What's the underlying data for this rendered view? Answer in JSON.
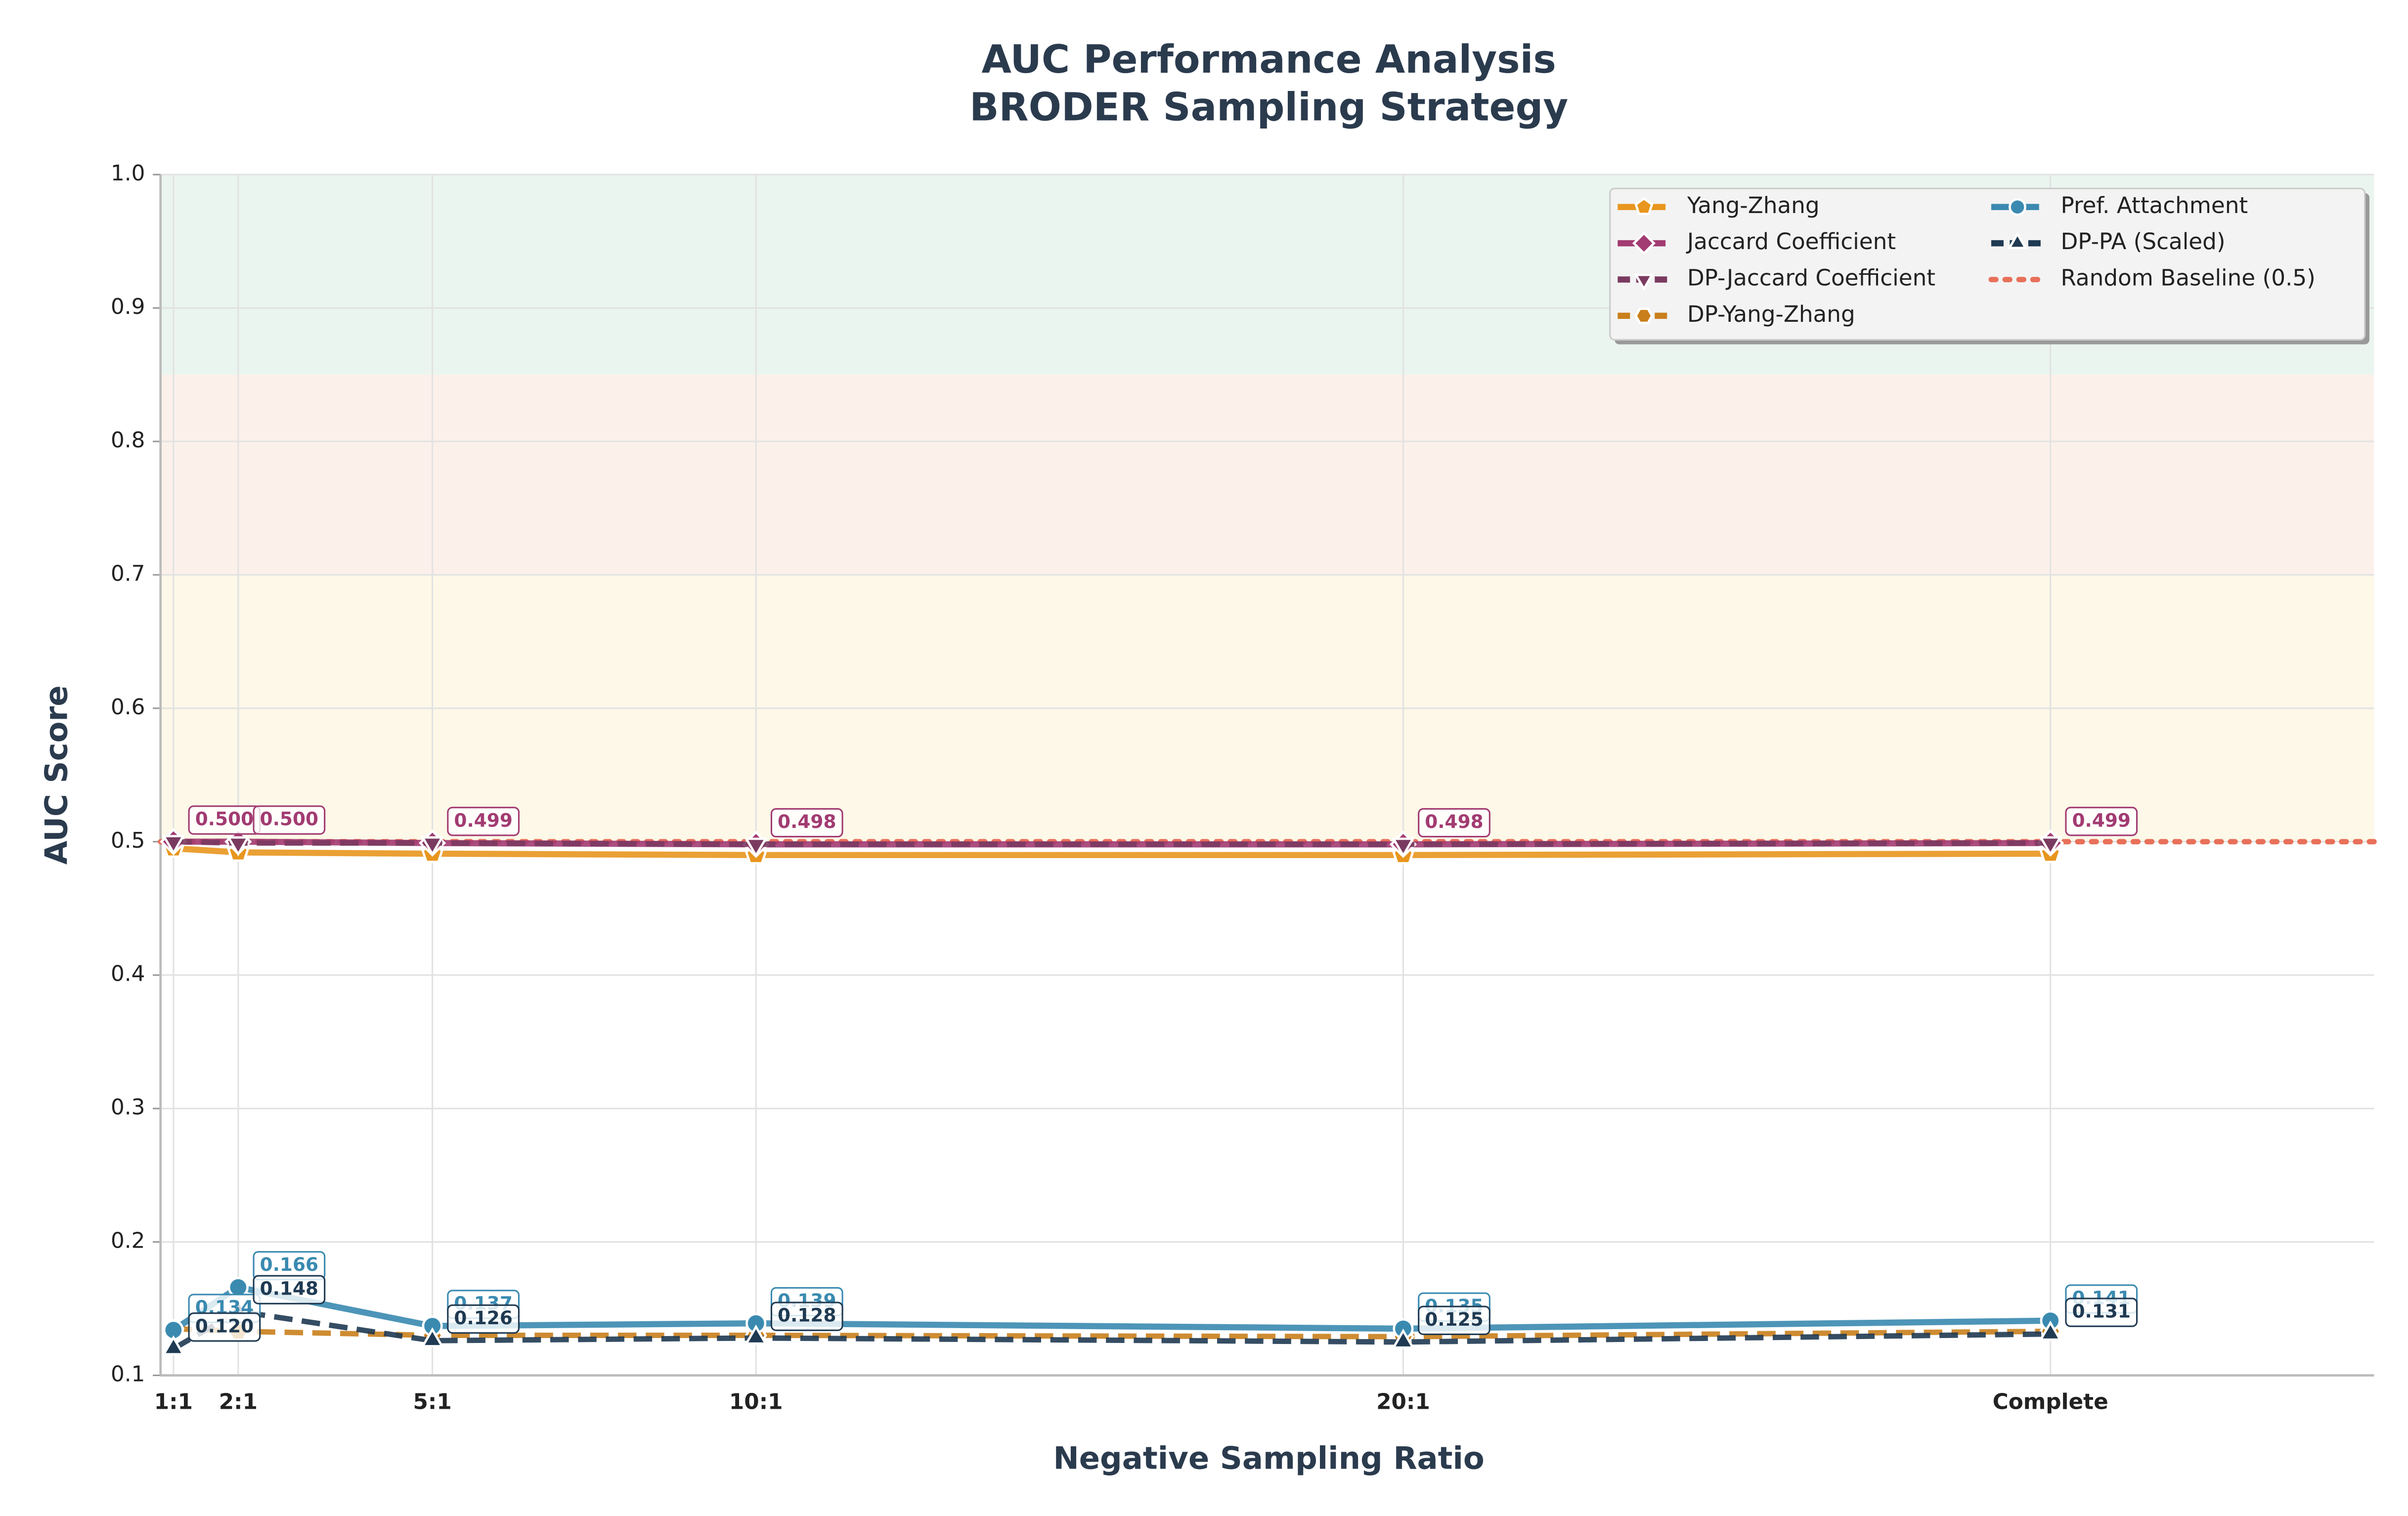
{
  "chart_data": {
    "type": "line",
    "title": "AUC Performance Analysis",
    "subtitle": "BRODER Sampling Strategy",
    "x_label": "Negative Sampling Ratio",
    "y_label": "AUC Score",
    "x": [
      1,
      2,
      5,
      10,
      20,
      30
    ],
    "xlim": [
      0.8,
      35
    ],
    "xticks": [
      {
        "value": 1,
        "label": "1:1"
      },
      {
        "value": 2,
        "label": "2:1"
      },
      {
        "value": 5,
        "label": "5:1"
      },
      {
        "value": 10,
        "label": "10:1"
      },
      {
        "value": 20,
        "label": "20:1"
      },
      {
        "value": 30,
        "label": "Complete"
      }
    ],
    "ylim": [
      0.1,
      1.0
    ],
    "yticks": [
      0.1,
      0.2,
      0.3,
      0.4,
      0.5,
      0.6,
      0.7,
      0.8,
      0.9,
      {
        "value": 1.0,
        "label": "1.0"
      }
    ],
    "grid": true,
    "legend": "upper right",
    "bands": [
      {
        "from": 0.85,
        "to": 1.0,
        "color": "#e3f1e8"
      },
      {
        "from": 0.7,
        "to": 0.85,
        "color": "#fbe9e3"
      },
      {
        "from": 0.5,
        "to": 0.7,
        "color": "#fcf5de"
      }
    ],
    "series": [
      {
        "name": "Yang-Zhang",
        "color": "#e8961e",
        "marker": "pentagon",
        "dash": false,
        "values": [
          0.495,
          0.492,
          0.491,
          0.49,
          0.49,
          0.491
        ]
      },
      {
        "name": "Jaccard Coefficient",
        "color": "#a23b72",
        "marker": "diamond",
        "dash": false,
        "values": [
          0.5,
          0.5,
          0.499,
          0.498,
          0.498,
          0.499
        ],
        "value_labels": [
          "0.500",
          "0.500",
          "0.499",
          "0.498",
          "0.498",
          "0.499"
        ]
      },
      {
        "name": "DP-Jaccard Coefficient",
        "color": "#7a3a60",
        "marker": "tri-down",
        "dash": true,
        "values": [
          0.5,
          0.499,
          0.499,
          0.498,
          0.498,
          0.499
        ]
      },
      {
        "name": "DP-Yang-Zhang",
        "color": "#c97f1c",
        "marker": "hexagon",
        "dash": true,
        "values": [
          0.135,
          0.133,
          0.13,
          0.13,
          0.129,
          0.133
        ]
      },
      {
        "name": "Pref. Attachment",
        "color": "#3a8ab0",
        "marker": "circle",
        "dash": false,
        "values": [
          0.134,
          0.166,
          0.137,
          0.139,
          0.135,
          0.141
        ],
        "value_labels": [
          "0.134",
          "0.166",
          "0.137",
          "0.139",
          "0.135",
          "0.141"
        ]
      },
      {
        "name": "DP-PA (Scaled)",
        "color": "#1f3a52",
        "marker": "tri-up",
        "dash": true,
        "values": [
          0.12,
          0.148,
          0.126,
          0.128,
          0.125,
          0.131
        ],
        "value_labels": [
          "0.120",
          "0.148",
          "0.126",
          "0.128",
          "0.125",
          "0.131"
        ]
      }
    ],
    "baseline": {
      "name": "Random Baseline (0.5)",
      "value": 0.5,
      "color": "#e8705a"
    }
  }
}
